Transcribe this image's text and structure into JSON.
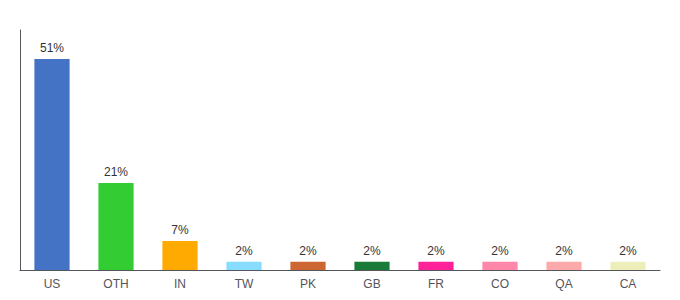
{
  "chart_data": {
    "type": "bar",
    "categories": [
      "US",
      "OTH",
      "IN",
      "TW",
      "PK",
      "GB",
      "FR",
      "CO",
      "QA",
      "CA"
    ],
    "values": [
      51,
      21,
      7,
      2,
      2,
      2,
      2,
      2,
      2,
      2
    ],
    "value_labels": [
      "51%",
      "21%",
      "7%",
      "2%",
      "2%",
      "2%",
      "2%",
      "2%",
      "2%",
      "2%"
    ],
    "colors": [
      "#4472c4",
      "#33cc33",
      "#ffaa00",
      "#88ddff",
      "#cc6633",
      "#1a7a3a",
      "#ff2299",
      "#ff88aa",
      "#ffaaaa",
      "#eeeebb"
    ],
    "ylim": [
      0,
      58
    ],
    "grid": false,
    "data_labels": true,
    "tick_labels": "x"
  }
}
